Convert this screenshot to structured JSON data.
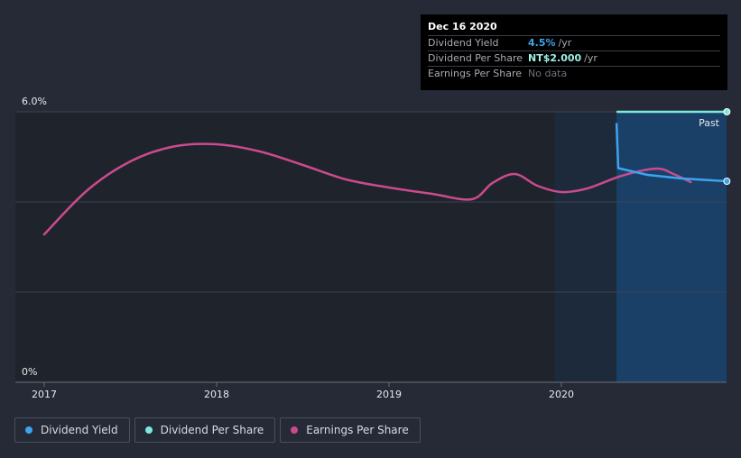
{
  "chart_data": {
    "type": "line",
    "x_ticks": [
      "2017",
      "2018",
      "2019",
      "2020"
    ],
    "y_ticks": [
      "6.0%",
      "0%"
    ],
    "ylim": [
      0,
      6.0
    ],
    "past_label": "Past",
    "series": [
      {
        "name": "Dividend Yield",
        "color": "#3ea3ef",
        "unit": "%",
        "points": [
          [
            2020.32,
            5.75
          ],
          [
            2020.33,
            4.75
          ],
          [
            2020.5,
            4.6
          ],
          [
            2020.7,
            4.52
          ],
          [
            2020.96,
            4.46
          ]
        ]
      },
      {
        "name": "Dividend Per Share",
        "color": "#7de8e0",
        "unit": "NT$",
        "points": [
          [
            2020.32,
            6.0
          ],
          [
            2020.96,
            6.0
          ]
        ]
      },
      {
        "name": "Earnings Per Share",
        "color": "#c94b8e",
        "unit": "relative",
        "points": [
          [
            2017.0,
            3.28
          ],
          [
            2017.25,
            4.26
          ],
          [
            2017.5,
            4.9
          ],
          [
            2017.75,
            5.23
          ],
          [
            2018.0,
            5.28
          ],
          [
            2018.25,
            5.12
          ],
          [
            2018.5,
            4.82
          ],
          [
            2018.75,
            4.5
          ],
          [
            2019.0,
            4.32
          ],
          [
            2019.25,
            4.18
          ],
          [
            2019.48,
            4.06
          ],
          [
            2019.6,
            4.42
          ],
          [
            2019.73,
            4.62
          ],
          [
            2019.86,
            4.36
          ],
          [
            2020.0,
            4.22
          ],
          [
            2020.15,
            4.3
          ],
          [
            2020.35,
            4.58
          ],
          [
            2020.55,
            4.74
          ],
          [
            2020.65,
            4.62
          ],
          [
            2020.75,
            4.44
          ]
        ]
      }
    ]
  },
  "tooltip": {
    "date": "Dec 16 2020",
    "rows": [
      {
        "label": "Dividend Yield",
        "value": "4.5%",
        "unit": "/yr"
      },
      {
        "label": "Dividend Per Share",
        "value": "NT$2.000",
        "unit": "/yr"
      },
      {
        "label": "Earnings Per Share",
        "value": "No data",
        "unit": ""
      }
    ]
  },
  "legend": [
    {
      "label": "Dividend Yield",
      "color": "#3ea3ef"
    },
    {
      "label": "Dividend Per Share",
      "color": "#7de8e0"
    },
    {
      "label": "Earnings Per Share",
      "color": "#c94b8e"
    }
  ]
}
